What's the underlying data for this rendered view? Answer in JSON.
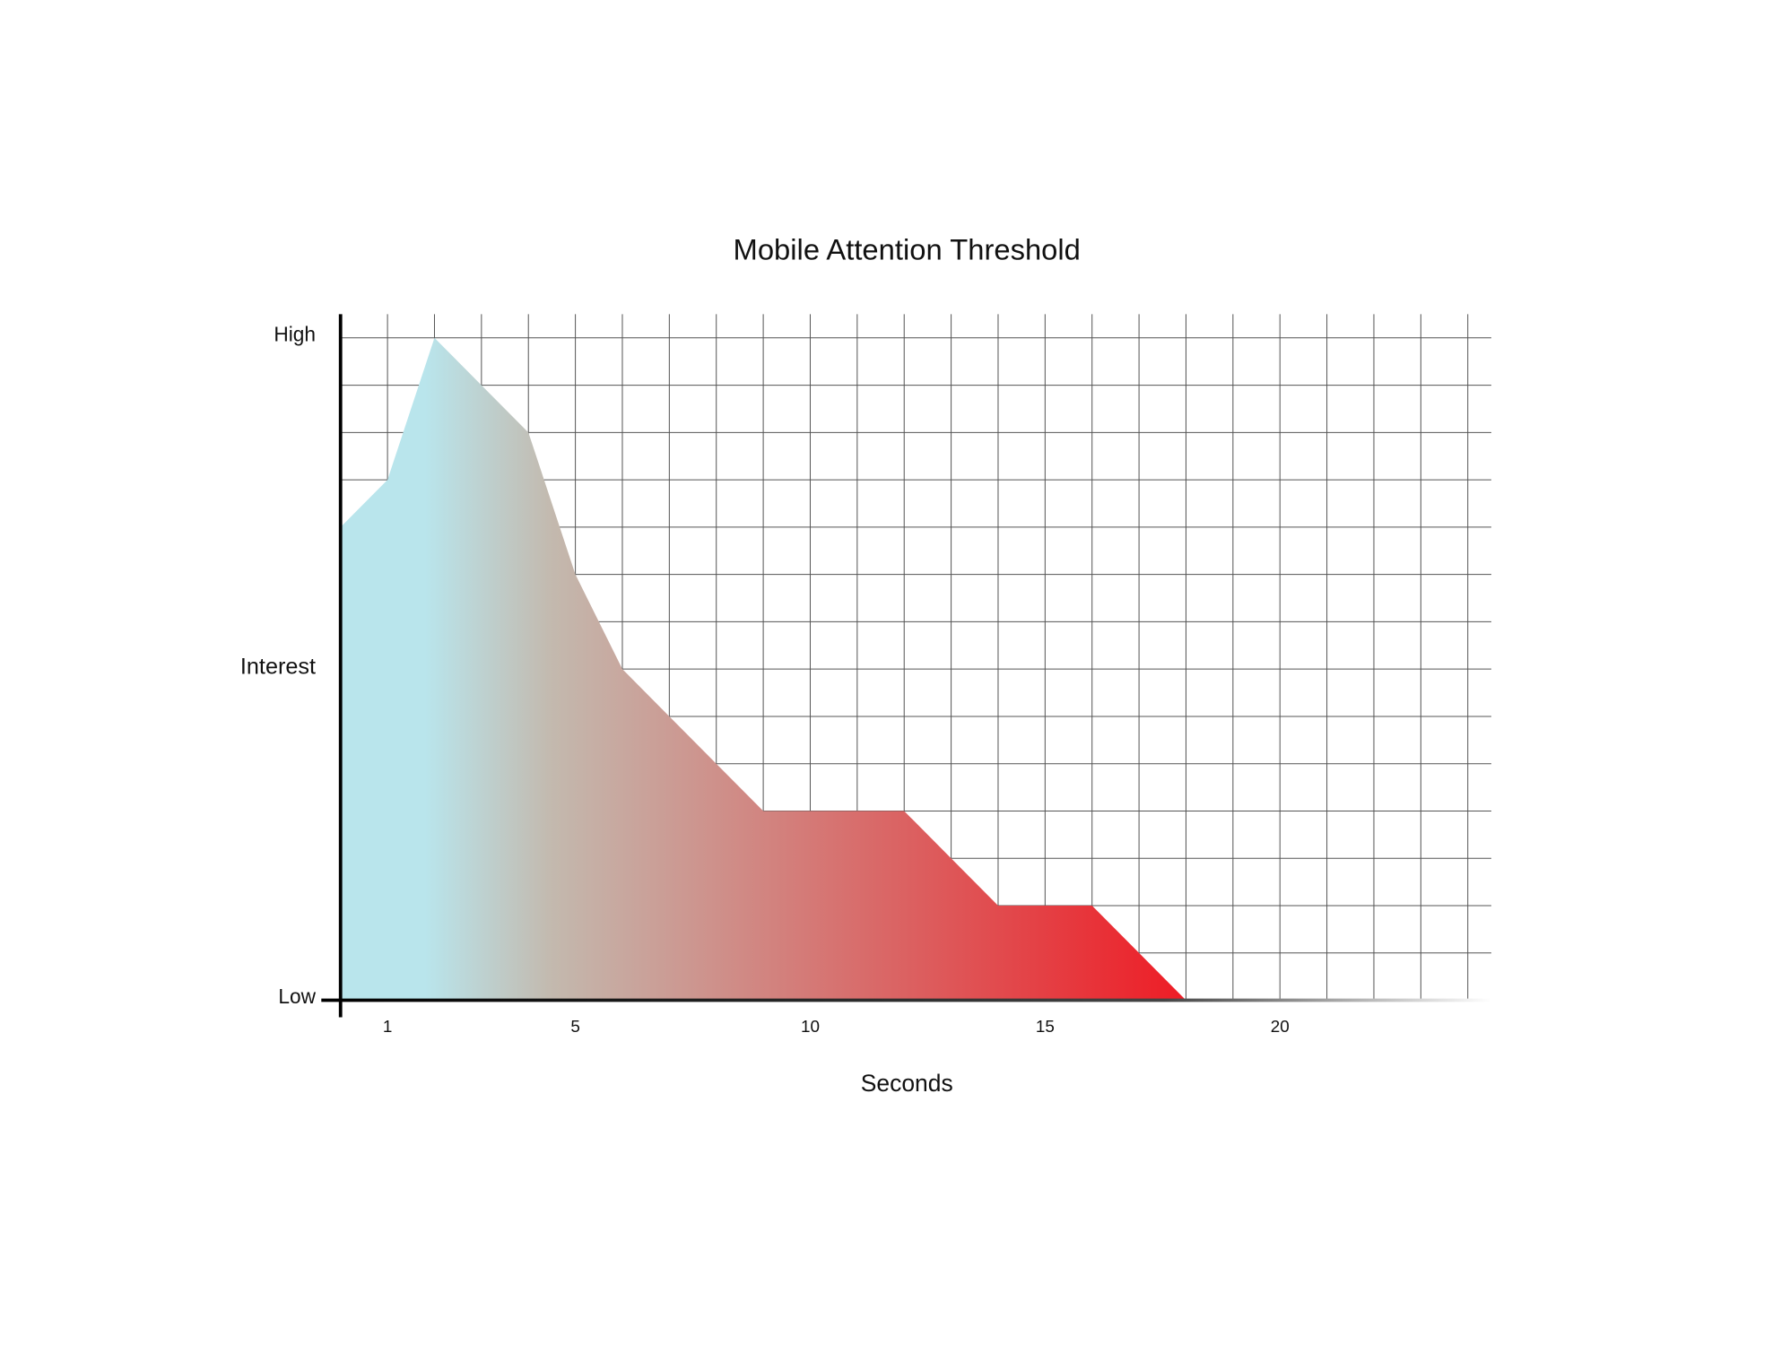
{
  "chart_data": {
    "type": "area",
    "title": "Mobile Attention Threshold",
    "x_label": "Seconds",
    "y_label": "Interest",
    "x": [
      0,
      1,
      2,
      3,
      4,
      5,
      6,
      7,
      8,
      9,
      12,
      13,
      14,
      16,
      17,
      18
    ],
    "values": [
      10,
      11,
      14,
      13,
      12,
      9,
      7,
      6,
      5,
      4,
      4,
      3,
      2,
      2,
      1,
      0
    ],
    "xlim": [
      0,
      24.5
    ],
    "ylim": [
      0,
      14.5
    ],
    "xticks": [
      1,
      5,
      10,
      15,
      20
    ],
    "yticks": [
      {
        "value": 0,
        "label": "Low"
      },
      {
        "value": 14,
        "label": "High"
      }
    ],
    "xgrid": [
      1,
      2,
      3,
      4,
      5,
      6,
      7,
      8,
      9,
      10,
      11,
      12,
      13,
      14,
      15,
      16,
      17,
      18,
      19,
      20,
      21,
      22,
      23,
      24
    ],
    "ygrid": [
      1,
      2,
      3,
      4,
      5,
      6,
      7,
      8,
      9,
      10,
      11,
      12,
      13,
      14
    ],
    "gradient": [
      "#b9e5ec",
      "#c3b9ae",
      "#ee1c25"
    ]
  }
}
